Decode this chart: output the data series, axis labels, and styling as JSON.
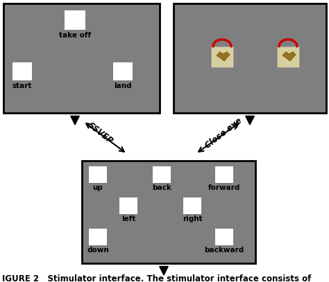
{
  "bg_color": "#7f7f7f",
  "white": "#ffffff",
  "black": "#000000",
  "figure_bg": "#ffffff",
  "ssvep_label": "SSVEP",
  "close_eye_label": "Close eye",
  "figure_caption": "IGURE 2   Stimulator interface. The stimulator interface consists of",
  "top_left_labels": [
    "take off",
    "start",
    "land"
  ],
  "bottom_labels_row1": [
    "up",
    "back",
    "forward"
  ],
  "bottom_labels_row2": [
    "left",
    "right"
  ],
  "bottom_labels_row3": [
    "down",
    "backward"
  ],
  "caption_fontsize": 8.5,
  "label_fontsize": 7.5
}
